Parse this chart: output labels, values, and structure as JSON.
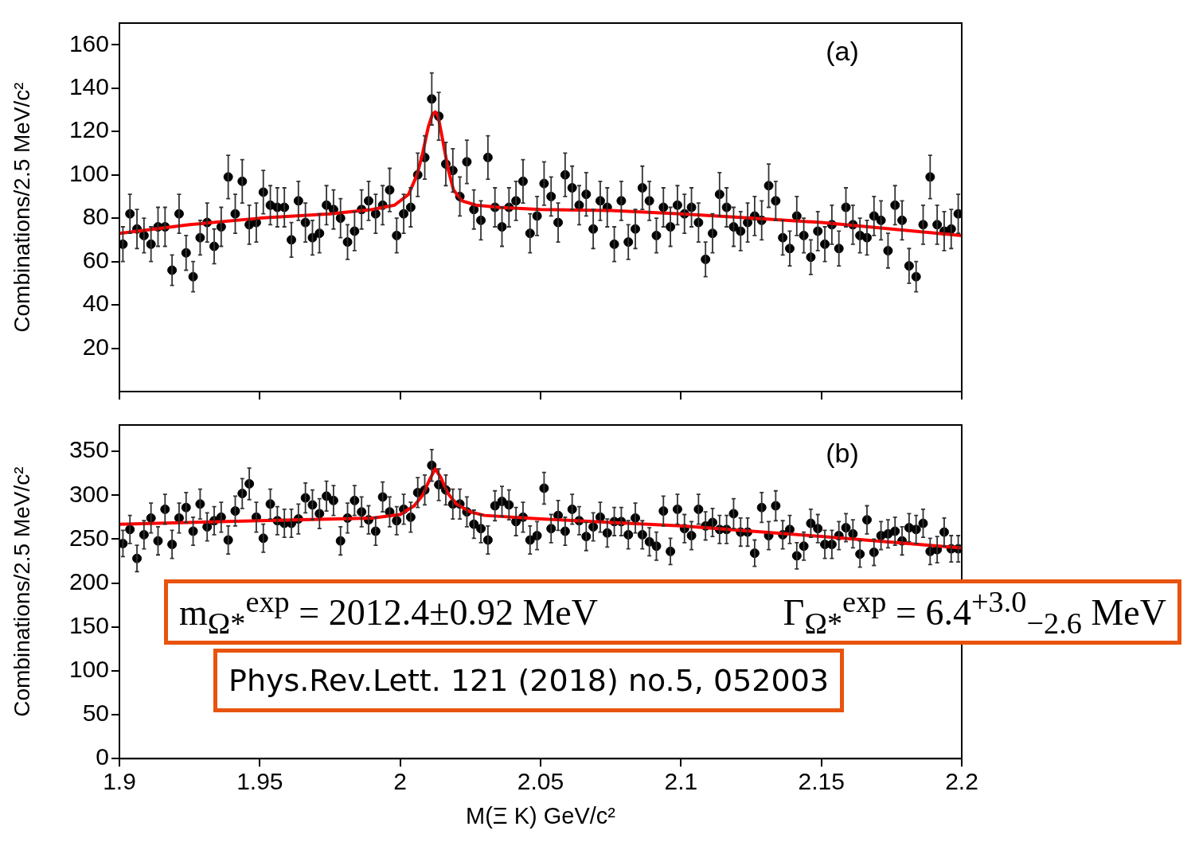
{
  "chart_data": [
    {
      "type": "scatter",
      "ylabel": "Combinations/2.5 MeV/c²",
      "xlim": [
        1.9,
        2.2
      ],
      "xticks": [
        1.9,
        1.95,
        2,
        2.05,
        2.1,
        2.15,
        2.2
      ],
      "ylim": [
        0,
        170
      ],
      "yticks": [
        20,
        40,
        60,
        80,
        100,
        120,
        140,
        160
      ],
      "tick_labels": "y",
      "annotations": [
        "(a)"
      ],
      "x": [
        1.90125,
        1.90375,
        1.90625,
        1.90875,
        1.91125,
        1.91375,
        1.91625,
        1.91875,
        1.92125,
        1.92375,
        1.92625,
        1.92875,
        1.93125,
        1.93375,
        1.93625,
        1.93875,
        1.94125,
        1.94375,
        1.94625,
        1.94875,
        1.95125,
        1.95375,
        1.95625,
        1.95875,
        1.96125,
        1.96375,
        1.96625,
        1.96875,
        1.97125,
        1.97375,
        1.97625,
        1.97875,
        1.98125,
        1.98375,
        1.98625,
        1.98875,
        1.99125,
        1.99375,
        1.99625,
        1.99875,
        2.00125,
        2.00375,
        2.00625,
        2.00875,
        2.01125,
        2.01375,
        2.01625,
        2.01875,
        2.02125,
        2.02375,
        2.02625,
        2.02875,
        2.03125,
        2.03375,
        2.03625,
        2.03875,
        2.04125,
        2.04375,
        2.04625,
        2.04875,
        2.05125,
        2.05375,
        2.05625,
        2.05875,
        2.06125,
        2.06375,
        2.06625,
        2.06875,
        2.07125,
        2.07375,
        2.07625,
        2.07875,
        2.08125,
        2.08375,
        2.08625,
        2.08875,
        2.09125,
        2.09375,
        2.09625,
        2.09875,
        2.10125,
        2.10375,
        2.10625,
        2.10875,
        2.11125,
        2.11375,
        2.11625,
        2.11875,
        2.12125,
        2.12375,
        2.12625,
        2.12875,
        2.13125,
        2.13375,
        2.13625,
        2.13875,
        2.14125,
        2.14375,
        2.14625,
        2.14875,
        2.15125,
        2.15375,
        2.15625,
        2.15875,
        2.16125,
        2.16375,
        2.16625,
        2.16875,
        2.17125,
        2.17375,
        2.17625,
        2.17875,
        2.18125,
        2.18375,
        2.18625,
        2.18875,
        2.19125,
        2.19375,
        2.19625,
        2.19875
      ],
      "series": [
        {
          "color": "#000000",
          "marker": "circle",
          "values": [
            68,
            82,
            75,
            72,
            68,
            76,
            76,
            56,
            82,
            64,
            53,
            71,
            78,
            67,
            76,
            99,
            82,
            97,
            77,
            78,
            92,
            86,
            85,
            85,
            70,
            88,
            78,
            71,
            73,
            86,
            84,
            80,
            69,
            74,
            84,
            88,
            82,
            86,
            93,
            72,
            82,
            85,
            100,
            108,
            135,
            127,
            105,
            102,
            90,
            106,
            84,
            79,
            108,
            85,
            76,
            85,
            88,
            97,
            73,
            81,
            96,
            90,
            78,
            100,
            94,
            86,
            91,
            75,
            88,
            85,
            68,
            88,
            69,
            75,
            94,
            88,
            72,
            85,
            76,
            86,
            82,
            85,
            78,
            61,
            73,
            91,
            85,
            76,
            74,
            78,
            81,
            79,
            95,
            88,
            71,
            66,
            81,
            72,
            62,
            74,
            68,
            77,
            66,
            85,
            77,
            72,
            71,
            81,
            79,
            65,
            86,
            79,
            58,
            53,
            77,
            99,
            77,
            74,
            75,
            82
          ],
          "errors": [
            8,
            9,
            9,
            8,
            8,
            9,
            9,
            7,
            9,
            8,
            7,
            8,
            9,
            8,
            9,
            10,
            9,
            10,
            9,
            9,
            10,
            9,
            9,
            9,
            8,
            9,
            9,
            8,
            9,
            9,
            9,
            9,
            8,
            9,
            9,
            9,
            9,
            9,
            10,
            8,
            9,
            9,
            10,
            10,
            12,
            11,
            10,
            10,
            9,
            10,
            9,
            9,
            10,
            9,
            9,
            9,
            9,
            10,
            9,
            9,
            10,
            9,
            9,
            10,
            10,
            9,
            10,
            9,
            9,
            9,
            8,
            9,
            8,
            9,
            10,
            9,
            8,
            9,
            9,
            9,
            9,
            9,
            9,
            8,
            9,
            10,
            9,
            9,
            9,
            9,
            9,
            9,
            10,
            9,
            8,
            8,
            9,
            8,
            8,
            9,
            8,
            9,
            8,
            9,
            9,
            8,
            8,
            9,
            9,
            8,
            9,
            9,
            8,
            7,
            9,
            10,
            9,
            9,
            9,
            9
          ]
        },
        {
          "type": "line",
          "color": "#ff0000",
          "x": [
            1.9,
            1.925,
            1.95,
            1.975,
            1.99,
            1.998,
            2.003,
            2.006,
            2.008,
            2.01,
            2.0115,
            2.0125,
            2.0135,
            2.015,
            2.017,
            2.019,
            2.022,
            2.027,
            2.035,
            2.05,
            2.075,
            2.1,
            2.125,
            2.15,
            2.175,
            2.2
          ],
          "values": [
            73,
            77,
            80,
            82,
            84,
            86,
            91,
            100,
            110,
            122,
            128,
            129,
            127,
            117,
            103,
            93,
            88,
            86,
            85,
            84,
            83.5,
            82,
            80,
            78,
            75,
            72
          ]
        }
      ]
    },
    {
      "type": "scatter",
      "xlabel": "M(Ξ K) GeV/c²",
      "ylabel": "Combinations/2.5 MeV/c²",
      "xlim": [
        1.9,
        2.2
      ],
      "xticks": [
        1.9,
        1.95,
        2,
        2.05,
        2.1,
        2.15,
        2.2
      ],
      "ylim": [
        0,
        380
      ],
      "yticks": [
        0,
        50,
        100,
        150,
        200,
        250,
        300,
        350
      ],
      "annotations": [
        "(b)",
        "m$_{Ω*}$$^{exp}$ = 2012.4±0.92 MeV",
        "Γ$_{Ω*}$$^{exp}$ = 6.4$^{+3.0}$$_{−2.6}$ MeV",
        "Phys.Rev.Lett. 121 (2018) no.5, 052003"
      ],
      "x": [
        1.90125,
        1.90375,
        1.90625,
        1.90875,
        1.91125,
        1.91375,
        1.91625,
        1.91875,
        1.92125,
        1.92375,
        1.92625,
        1.92875,
        1.93125,
        1.93375,
        1.93625,
        1.93875,
        1.94125,
        1.94375,
        1.94625,
        1.94875,
        1.95125,
        1.95375,
        1.95625,
        1.95875,
        1.96125,
        1.96375,
        1.96625,
        1.96875,
        1.97125,
        1.97375,
        1.97625,
        1.97875,
        1.98125,
        1.98375,
        1.98625,
        1.98875,
        1.99125,
        1.99375,
        1.99625,
        1.99875,
        2.00125,
        2.00375,
        2.00625,
        2.00875,
        2.01125,
        2.01375,
        2.01625,
        2.01875,
        2.02125,
        2.02375,
        2.02625,
        2.02875,
        2.03125,
        2.03375,
        2.03625,
        2.03875,
        2.04125,
        2.04375,
        2.04625,
        2.04875,
        2.05125,
        2.05375,
        2.05625,
        2.05875,
        2.06125,
        2.06375,
        2.06625,
        2.06875,
        2.07125,
        2.07375,
        2.07625,
        2.07875,
        2.08125,
        2.08375,
        2.08625,
        2.08875,
        2.09125,
        2.09375,
        2.09625,
        2.09875,
        2.10125,
        2.10375,
        2.10625,
        2.10875,
        2.11125,
        2.11375,
        2.11625,
        2.11875,
        2.12125,
        2.12375,
        2.12625,
        2.12875,
        2.13125,
        2.13375,
        2.13625,
        2.13875,
        2.14125,
        2.14375,
        2.14625,
        2.14875,
        2.15125,
        2.15375,
        2.15625,
        2.15875,
        2.16125,
        2.16375,
        2.16625,
        2.16875,
        2.17125,
        2.17375,
        2.17625,
        2.17875,
        2.18125,
        2.18375,
        2.18625,
        2.18875,
        2.19125,
        2.19375,
        2.19625,
        2.19875
      ],
      "series": [
        {
          "color": "#000000",
          "marker": "circle",
          "values": [
            245,
            261,
            228,
            255,
            274,
            248,
            284,
            244,
            274,
            286,
            259,
            290,
            264,
            271,
            275,
            249,
            282,
            302,
            313,
            275,
            251,
            290,
            271,
            268,
            268,
            273,
            297,
            289,
            279,
            299,
            294,
            248,
            274,
            294,
            281,
            272,
            259,
            298,
            281,
            271,
            284,
            275,
            303,
            306,
            334,
            312,
            306,
            290,
            290,
            281,
            267,
            262,
            249,
            288,
            293,
            289,
            270,
            275,
            249,
            254,
            308,
            262,
            277,
            259,
            284,
            271,
            253,
            264,
            275,
            257,
            270,
            270,
            255,
            274,
            255,
            247,
            242,
            282,
            236,
            284,
            262,
            254,
            284,
            265,
            269,
            261,
            261,
            279,
            258,
            258,
            234,
            286,
            254,
            288,
            255,
            261,
            231,
            242,
            268,
            262,
            244,
            244,
            254,
            263,
            256,
            233,
            272,
            235,
            254,
            256,
            259,
            248,
            263,
            261,
            268,
            236,
            238,
            258,
            239,
            239
          ],
          "errors": [
            15,
            16,
            15,
            16,
            17,
            16,
            17,
            16,
            17,
            17,
            16,
            17,
            16,
            16,
            17,
            16,
            17,
            17,
            18,
            17,
            16,
            17,
            16,
            16,
            16,
            17,
            17,
            17,
            17,
            17,
            17,
            16,
            17,
            17,
            17,
            16,
            16,
            17,
            17,
            16,
            17,
            17,
            17,
            17,
            18,
            18,
            17,
            17,
            17,
            17,
            16,
            16,
            16,
            17,
            17,
            17,
            16,
            17,
            16,
            16,
            18,
            16,
            17,
            16,
            17,
            16,
            16,
            16,
            17,
            16,
            16,
            16,
            16,
            17,
            16,
            16,
            16,
            17,
            15,
            17,
            16,
            16,
            17,
            16,
            16,
            16,
            16,
            17,
            16,
            16,
            15,
            17,
            16,
            17,
            16,
            16,
            15,
            16,
            16,
            16,
            16,
            16,
            16,
            16,
            16,
            15,
            16,
            15,
            16,
            16,
            16,
            16,
            16,
            16,
            16,
            15,
            15,
            16,
            15,
            15
          ]
        },
        {
          "type": "line",
          "color": "#ff0000",
          "x": [
            1.9,
            1.95,
            1.99,
            2.0,
            2.005,
            2.008,
            2.0105,
            2.0125,
            2.0145,
            2.017,
            2.02,
            2.025,
            2.03,
            2.05,
            2.1,
            2.15,
            2.2
          ],
          "values": [
            267,
            271,
            274,
            278,
            288,
            300,
            318,
            330,
            320,
            302,
            290,
            281,
            277,
            273,
            265,
            253,
            240
          ]
        }
      ]
    }
  ]
}
